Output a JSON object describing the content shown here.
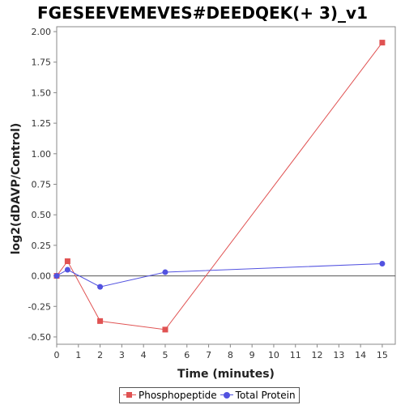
{
  "chart_data": {
    "type": "line",
    "title": "FGESEEVEMEVES#DEEDQEK(+ 3)_v1",
    "xlabel": "Time (minutes)",
    "ylabel": "log2(dDAVP/Control)",
    "xlim": [
      0,
      15.6
    ],
    "ylim": [
      -0.56,
      2.04
    ],
    "xticks": [
      0,
      1,
      2,
      3,
      4,
      5,
      6,
      7,
      8,
      9,
      10,
      11,
      12,
      13,
      14,
      15
    ],
    "xtick_labels": [
      "0",
      "1",
      "2",
      "3",
      "4",
      "5",
      "6",
      "7",
      "8",
      "9",
      "10",
      "11",
      "12",
      "13",
      "14",
      "15"
    ],
    "yticks": [
      -0.5,
      -0.25,
      0,
      0.25,
      0.5,
      0.75,
      1,
      1.25,
      1.5,
      1.75,
      2
    ],
    "ytick_labels": [
      "-0.50",
      "-0.25",
      "0.00",
      "0.25",
      "0.50",
      "0.75",
      "1.00",
      "1.25",
      "1.50",
      "1.75",
      "2.00"
    ],
    "grid": false,
    "legend_position": "bottom",
    "series": [
      {
        "name": "Phosphopeptide",
        "color": "#e05252",
        "marker": "square",
        "x": [
          0,
          0.5,
          2,
          5,
          15
        ],
        "y": [
          0,
          0.12,
          -0.37,
          -0.44,
          1.91
        ]
      },
      {
        "name": "Total Protein",
        "color": "#5252e0",
        "marker": "circle",
        "x": [
          0,
          0.5,
          2,
          5,
          15
        ],
        "y": [
          0,
          0.05,
          -0.09,
          0.03,
          0.1
        ]
      }
    ]
  }
}
